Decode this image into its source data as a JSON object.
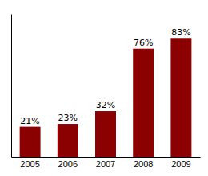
{
  "chart_data": {
    "type": "bar",
    "categories": [
      "2005",
      "2006",
      "2007",
      "2008",
      "2009"
    ],
    "values": [
      21,
      23,
      32,
      76,
      83
    ],
    "value_labels": [
      "21%",
      "23%",
      "32%",
      "76%",
      "83%"
    ],
    "color": "#8B0000",
    "ylim": [
      0,
      100
    ],
    "data_labels": true,
    "tick_labels": "x",
    "grid": false
  }
}
